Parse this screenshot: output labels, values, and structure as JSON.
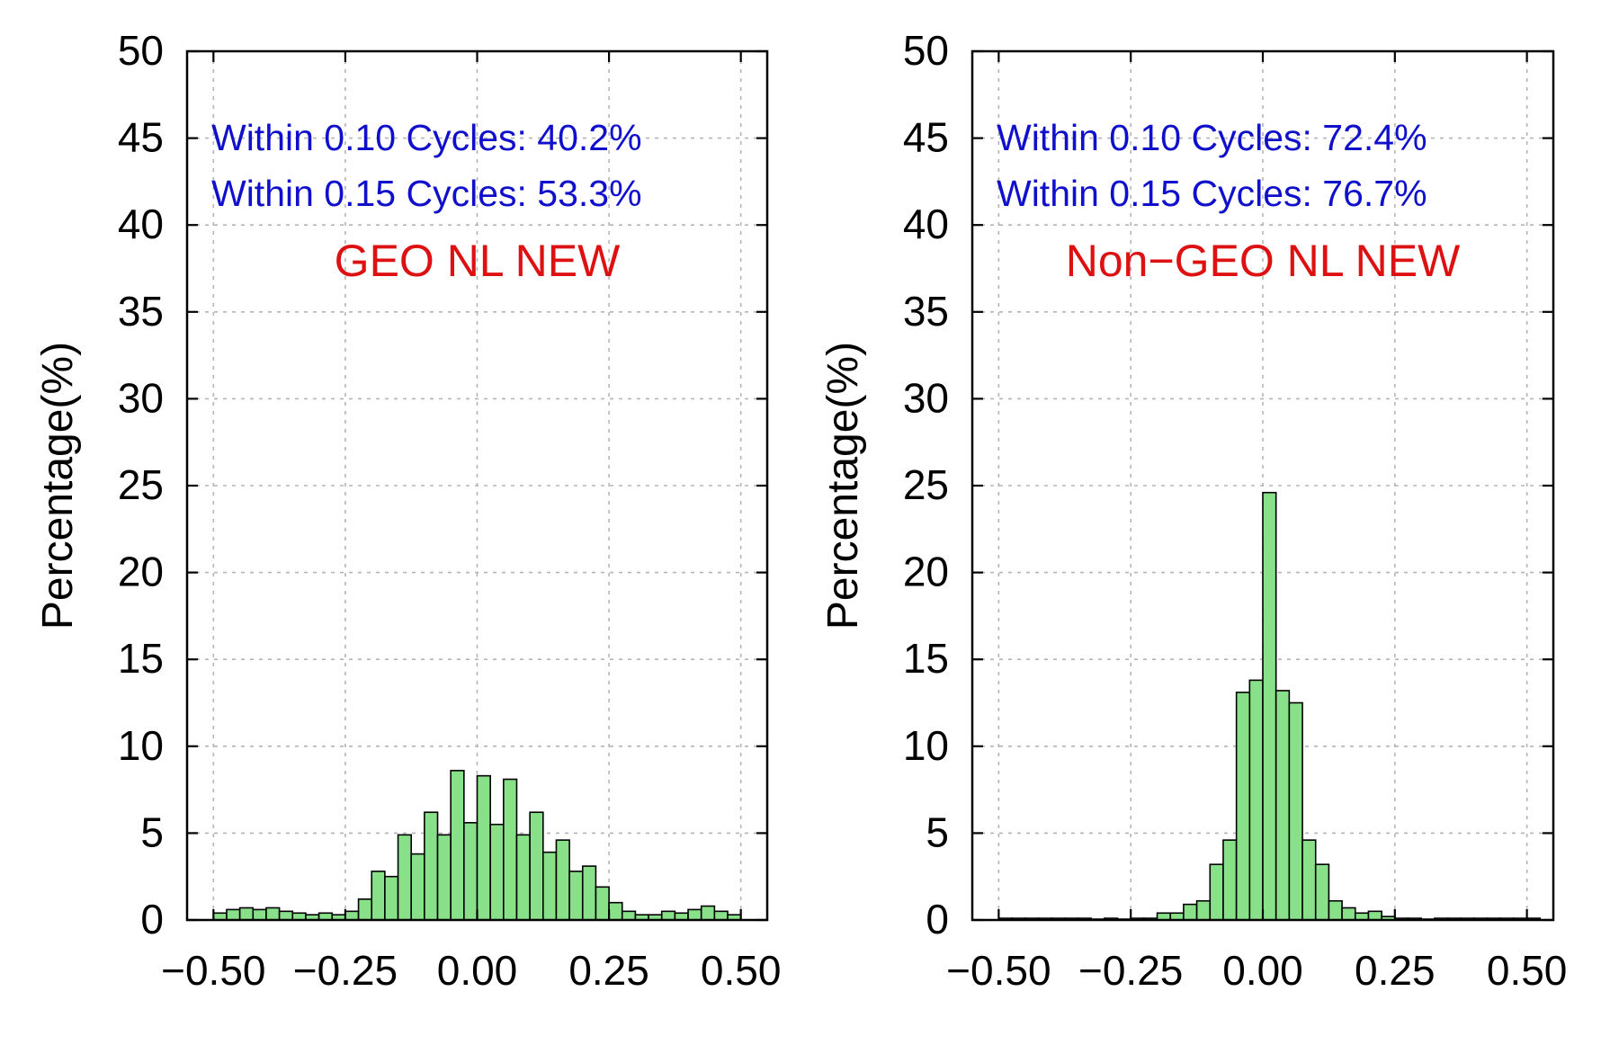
{
  "chart_data": [
    {
      "type": "bar",
      "title": "GEO NL NEW",
      "xlabel": "",
      "ylabel": "Percentage(%)",
      "ylim": [
        0,
        50
      ],
      "xlim": [
        -0.55,
        0.55
      ],
      "yticks": [
        "0",
        "5",
        "10",
        "15",
        "20",
        "25",
        "30",
        "35",
        "40",
        "45",
        "50"
      ],
      "xticks": [
        "-0.50",
        "-0.25",
        "0.00",
        "0.25",
        "0.50"
      ],
      "grid": true,
      "annotations": [
        "Within 0.10 Cycles: 40.2%",
        "Within 0.15 Cycles: 53.3%"
      ],
      "bar_color": "#88e088",
      "annotation_color": "#1010cc",
      "title_color": "#dd1111",
      "bin_width": 0.025,
      "bin_start": -0.5,
      "values": [
        0.4,
        0.6,
        0.7,
        0.6,
        0.7,
        0.5,
        0.4,
        0.3,
        0.4,
        0.3,
        0.5,
        1.2,
        2.8,
        2.5,
        4.9,
        3.8,
        6.2,
        4.9,
        8.6,
        5.6,
        8.3,
        5.5,
        8.1,
        4.9,
        6.2,
        3.9,
        4.6,
        2.8,
        3.1,
        1.9,
        1.0,
        0.5,
        0.3,
        0.3,
        0.5,
        0.4,
        0.6,
        0.8,
        0.5,
        0.3
      ]
    },
    {
      "type": "bar",
      "title": "Non−GEO NL NEW",
      "xlabel": "",
      "ylabel": "Percentage(%)",
      "ylim": [
        0,
        50
      ],
      "xlim": [
        -0.55,
        0.55
      ],
      "yticks": [
        "0",
        "5",
        "10",
        "15",
        "20",
        "25",
        "30",
        "35",
        "40",
        "45",
        "50"
      ],
      "xticks": [
        "-0.50",
        "-0.25",
        "0.00",
        "0.25",
        "0.50"
      ],
      "grid": true,
      "annotations": [
        "Within 0.10 Cycles: 72.4%",
        "Within 0.15 Cycles: 76.7%"
      ],
      "bar_color": "#88e088",
      "annotation_color": "#1010cc",
      "title_color": "#dd1111",
      "bin_width": 0.025,
      "bin_start": -0.5,
      "values": [
        0.1,
        0.1,
        0.1,
        0.1,
        0.1,
        0.1,
        0.1,
        0.0,
        0.1,
        0.0,
        0.1,
        0.1,
        0.4,
        0.4,
        0.9,
        1.1,
        3.2,
        4.6,
        13.1,
        13.8,
        24.6,
        13.2,
        12.5,
        4.6,
        3.2,
        1.1,
        0.7,
        0.4,
        0.5,
        0.2,
        0.1,
        0.1,
        0.0,
        0.1,
        0.1,
        0.1,
        0.1,
        0.1,
        0.1,
        0.1,
        0.1
      ]
    }
  ]
}
